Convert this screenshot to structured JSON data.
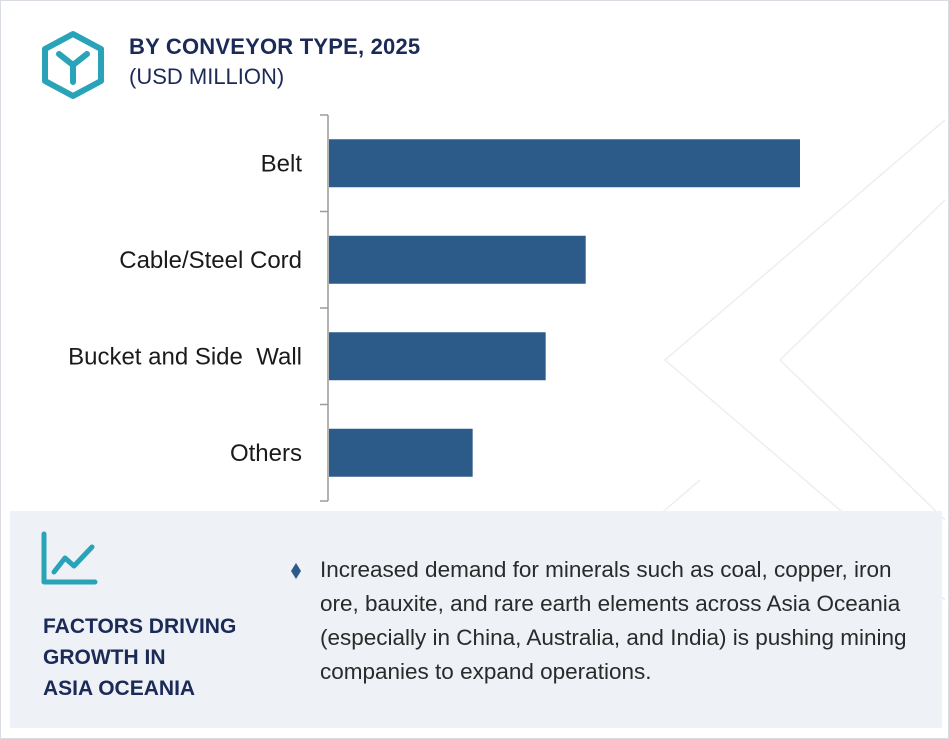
{
  "header": {
    "title": "BY CONVEYOR TYPE, 2025",
    "subtitle": "(USD MILLION)",
    "logo_icon": "cube-y-icon",
    "accent_color": "#29a3b8",
    "title_color": "#1b2a56"
  },
  "chart_data": {
    "type": "bar",
    "orientation": "horizontal",
    "title": "BY CONVEYOR TYPE, 2025",
    "subtitle": "(USD MILLION)",
    "categories": [
      "Belt",
      "Cable/Steel Cord",
      "Bucket and Side  Wall",
      "Others"
    ],
    "values": [
      100,
      54.5,
      46,
      30.5
    ],
    "xlim": [
      0,
      100
    ],
    "value_axis_visible": false,
    "grid": false,
    "bar_color": "#2c5a89"
  },
  "factors": {
    "icon": "line-chart-trend-icon",
    "title_lines": [
      "FACTORS DRIVING",
      "GROWTH IN",
      "ASIA OCEANIA"
    ],
    "bullet_icon": "diamond-bullet-icon",
    "bullet_text": "Increased demand for minerals such as coal, copper, iron ore, bauxite, and rare earth elements across Asia Oceania (especially in China, Australia, and India) is pushing mining companies to expand operations."
  }
}
